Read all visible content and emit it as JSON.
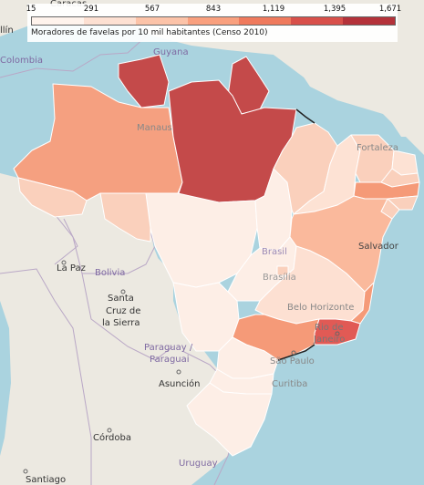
{
  "legend": {
    "title": "Moradores de favelas por 10 mil habitantes (Censo 2010)",
    "ticks": [
      "15",
      "291",
      "567",
      "843",
      "1,119",
      "1,395",
      "1,671"
    ],
    "colors": [
      "#fff3ec",
      "#fde0d2",
      "#fcc3a8",
      "#f9a07e",
      "#ef7a5d",
      "#d8504a",
      "#b4323a"
    ]
  },
  "labels": {
    "caracas": "Caracas",
    "colombia": "Colombia",
    "guyana": "Guyana",
    "manaus": "Manaus",
    "fortaleza": "Fortaleza",
    "brasil": "Brasil",
    "brasilia": "Brasília",
    "salvador": "Salvador",
    "la_paz": "La Paz",
    "bolivia": "Bolivia",
    "santa": "Santa",
    "cruz_de": "Cruz de",
    "la_sierra": "la Sierra",
    "belo_horizonte": "Belo Horizonte",
    "rio_de": "Rio de",
    "janeiro": "Janeiro",
    "paraguay": "Paraguay /",
    "paraguai": "Paraguai",
    "sao_paulo": "São Paulo",
    "asuncion": "Asunción",
    "curitiba": "Curitiba",
    "cordoba": "Córdoba",
    "uruguay": "Uruguay",
    "santiago": "Santiago",
    "bogota_partial": "llín"
  },
  "states": {
    "roraima": "#c44a4a",
    "amapa": "#c44a4a",
    "para": "#c44a4a",
    "amazonas": "#f5a080",
    "acre": "#fad0bc",
    "rondonia": "#fad0bc",
    "mato_grosso": "#fdeee6",
    "tocantins": "#fdeee6",
    "maranhao": "#fad0bc",
    "piaui": "#fde2d4",
    "ceara": "#fad0bc",
    "rio_grande_do_norte": "#fde2d4",
    "paraiba": "#fad0bc",
    "pernambuco": "#f59a78",
    "alagoas": "#fad0bc",
    "sergipe": "#fad0bc",
    "bahia": "#fab99c",
    "goias": "#fdeee6",
    "df": "#fad0bc",
    "mato_grosso_do_sul": "#fdeee6",
    "minas_gerais": "#fde0d2",
    "espirito_santo": "#f59a78",
    "rio_de_janeiro": "#e15a55",
    "sao_paulo": "#f59a78",
    "parana": "#fdeee6",
    "santa_catarina": "#fdeee6",
    "rio_grande_do_sul": "#fdeee6"
  }
}
